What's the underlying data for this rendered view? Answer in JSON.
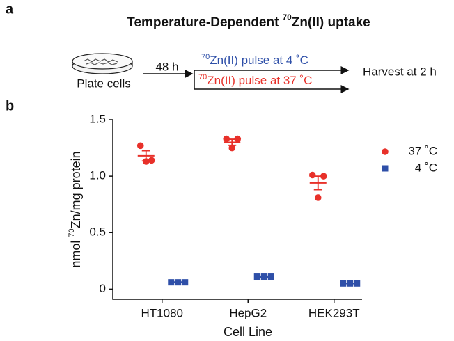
{
  "panel_a": {
    "label": "a",
    "title": {
      "before": "Temperature-Dependent",
      "sup": "70",
      "after": "Zn(II) uptake"
    },
    "plate": "Plate cells",
    "wait": "48 h",
    "pulse_cold": {
      "sup": "70",
      "text": "Zn(II) pulse at 4 ˚C"
    },
    "pulse_warm": {
      "sup": "70",
      "text": "Zn(II) pulse at 37 ˚C"
    },
    "harvest": "Harvest at 2 h"
  },
  "chart_data": {
    "type": "dot",
    "panel_label": "b",
    "ylabel": {
      "before": "nmol",
      "sup": "70",
      "after": "Zn/mg protein"
    },
    "xlabel": "Cell Line",
    "categories": [
      "HT1080",
      "HepG2",
      "HEK293T"
    ],
    "ylim": [
      -0.09,
      1.5
    ],
    "yticks": [
      0,
      0.5,
      {
        "value": 1,
        "label": "1.0"
      },
      1.5
    ],
    "legend": "upper right",
    "series": [
      {
        "name": "37 ˚C",
        "color": "#e8312a",
        "marker": "circle",
        "values": [
          [
            1.27,
            1.13,
            1.14
          ],
          [
            1.33,
            1.25,
            1.33
          ],
          [
            1.01,
            0.81,
            1.0
          ]
        ],
        "mean": [
          1.18,
          1.3,
          0.94
        ],
        "sem": [
          0.045,
          0.027,
          0.06
        ]
      },
      {
        "name": "4 ˚C",
        "color": "#2e4fa8",
        "marker": "square",
        "values": [
          [
            0.06,
            0.06,
            0.06
          ],
          [
            0.11,
            0.11,
            0.11
          ],
          [
            0.05,
            0.05,
            0.05
          ]
        ],
        "mean": [
          0.06,
          0.11,
          0.05
        ],
        "sem": [
          0.003,
          0.005,
          0.002
        ]
      }
    ]
  }
}
